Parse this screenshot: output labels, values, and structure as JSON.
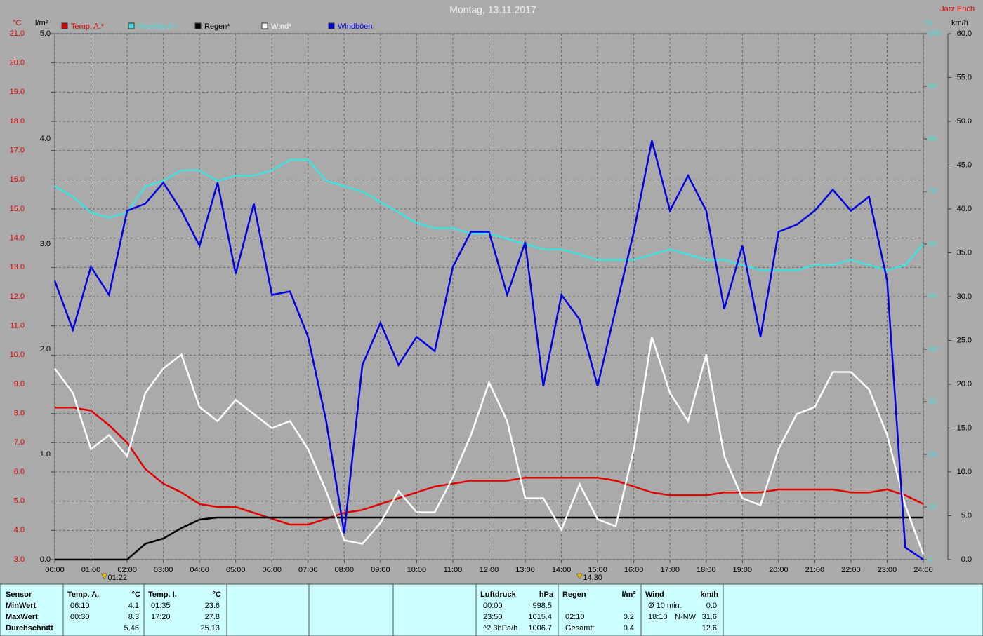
{
  "chart_data": {
    "type": "line",
    "title": "Montag, 13.11.2017",
    "author": "Jarz Erich",
    "ylabel": "°C",
    "y2label": "l/m²",
    "y3label": "%",
    "y4label": "km/h",
    "xlim": [
      0,
      24
    ],
    "xticks": [
      {
        "value": 0,
        "label": "00:00"
      },
      {
        "value": 1,
        "label": "01:00"
      },
      {
        "value": 2,
        "label": "02:00"
      },
      {
        "value": 3,
        "label": "03:00"
      },
      {
        "value": 4,
        "label": "04:00"
      },
      {
        "value": 5,
        "label": "05:00"
      },
      {
        "value": 6,
        "label": "06:00"
      },
      {
        "value": 7,
        "label": "07:00"
      },
      {
        "value": 8,
        "label": "08:00"
      },
      {
        "value": 9,
        "label": "09:00"
      },
      {
        "value": 10,
        "label": "10:00"
      },
      {
        "value": 11,
        "label": "11:00"
      },
      {
        "value": 12,
        "label": "12:00"
      },
      {
        "value": 13,
        "label": "13:00"
      },
      {
        "value": 14,
        "label": "14:00"
      },
      {
        "value": 15,
        "label": "15:00"
      },
      {
        "value": 16,
        "label": "16:00"
      },
      {
        "value": 17,
        "label": "17:00"
      },
      {
        "value": 18,
        "label": "18:00"
      },
      {
        "value": 19,
        "label": "19:00"
      },
      {
        "value": 20,
        "label": "20:00"
      },
      {
        "value": 21,
        "label": "21:00"
      },
      {
        "value": 22,
        "label": "22:00"
      },
      {
        "value": 23,
        "label": "23:00"
      },
      {
        "value": 24,
        "label": "24:00"
      }
    ],
    "ylim": [
      3,
      21
    ],
    "yticks": [
      {
        "value": 3,
        "label": "3.0"
      },
      {
        "value": 4,
        "label": "4.0"
      },
      {
        "value": 5,
        "label": "5.0"
      },
      {
        "value": 6,
        "label": "6.0"
      },
      {
        "value": 7,
        "label": "7.0"
      },
      {
        "value": 8,
        "label": "8.0"
      },
      {
        "value": 9,
        "label": "9.0"
      },
      {
        "value": 10,
        "label": "10.0"
      },
      {
        "value": 11,
        "label": "11.0"
      },
      {
        "value": 12,
        "label": "12.0"
      },
      {
        "value": 13,
        "label": "13.0"
      },
      {
        "value": 14,
        "label": "14.0"
      },
      {
        "value": 15,
        "label": "15.0"
      },
      {
        "value": 16,
        "label": "16.0"
      },
      {
        "value": 17,
        "label": "17.0"
      },
      {
        "value": 18,
        "label": "18.0"
      },
      {
        "value": 19,
        "label": "19.0"
      },
      {
        "value": 20,
        "label": "20.0"
      },
      {
        "value": 21,
        "label": "21.0"
      }
    ],
    "y2lim": [
      0,
      5
    ],
    "y2ticks": [
      {
        "value": 0,
        "label": "0.0"
      },
      {
        "value": 1,
        "label": "1.0"
      },
      {
        "value": 2,
        "label": "2.0"
      },
      {
        "value": 3,
        "label": "3.0"
      },
      {
        "value": 4,
        "label": "4.0"
      },
      {
        "value": 5,
        "label": "5.0"
      }
    ],
    "y3lim": [
      0,
      100
    ],
    "y3ticks": [
      0,
      10,
      20,
      30,
      40,
      50,
      60,
      70,
      80,
      90,
      100
    ],
    "y4lim": [
      0,
      60
    ],
    "y4ticks": [
      {
        "value": 0,
        "label": "0.0"
      },
      {
        "value": 5,
        "label": "5.0"
      },
      {
        "value": 10,
        "label": "10.0"
      },
      {
        "value": 15,
        "label": "15.0"
      },
      {
        "value": 20,
        "label": "20.0"
      },
      {
        "value": 25,
        "label": "25.0"
      },
      {
        "value": 30,
        "label": "30.0"
      },
      {
        "value": 35,
        "label": "35.0"
      },
      {
        "value": 40,
        "label": "40.0"
      },
      {
        "value": 45,
        "label": "45.0"
      },
      {
        "value": 50,
        "label": "50.0"
      },
      {
        "value": 55,
        "label": "55.0"
      },
      {
        "value": 60,
        "label": "60.0"
      }
    ],
    "grid": true,
    "x": [
      0,
      0.5,
      1,
      1.5,
      2,
      2.5,
      3,
      3.5,
      4,
      4.5,
      5,
      5.5,
      6,
      6.5,
      7,
      7.5,
      8,
      8.5,
      9,
      9.5,
      10,
      10.5,
      11,
      11.5,
      12,
      12.5,
      13,
      13.5,
      14,
      14.5,
      15,
      15.5,
      16,
      16.5,
      17,
      17.5,
      18,
      18.5,
      19,
      19.5,
      20,
      20.5,
      21,
      21.5,
      22,
      22.5,
      23,
      23.5,
      24
    ],
    "series": [
      {
        "name": "Temp. A.*",
        "color": "#e00000",
        "axis": "y",
        "values": [
          8.2,
          8.2,
          8.1,
          7.6,
          7.0,
          6.1,
          5.6,
          5.3,
          4.9,
          4.8,
          4.8,
          4.6,
          4.4,
          4.2,
          4.2,
          4.4,
          4.6,
          4.7,
          4.9,
          5.1,
          5.3,
          5.5,
          5.6,
          5.7,
          5.7,
          5.7,
          5.8,
          5.8,
          5.8,
          5.8,
          5.8,
          5.7,
          5.5,
          5.3,
          5.2,
          5.2,
          5.2,
          5.3,
          5.3,
          5.3,
          5.4,
          5.4,
          5.4,
          5.4,
          5.3,
          5.3,
          5.4,
          5.2,
          4.9
        ]
      },
      {
        "name": "Feuchte A.*",
        "color": "#40e0e0",
        "axis": "y3",
        "values": [
          71,
          69,
          66,
          65,
          66,
          71,
          72,
          74,
          74,
          72,
          73,
          73,
          74,
          76,
          76,
          72,
          71,
          70,
          68,
          66,
          64,
          63,
          63,
          62,
          62,
          61,
          60,
          59,
          59,
          58,
          57,
          57,
          57,
          58,
          59,
          58,
          57,
          57,
          56,
          55,
          55,
          55,
          56,
          56,
          57,
          56,
          55,
          56,
          60
        ]
      },
      {
        "name": "Regen*",
        "color": "#000000",
        "axis": "y2",
        "values": [
          0,
          0,
          0,
          0,
          0,
          0.15,
          0.2,
          0.3,
          0.38,
          0.4,
          0.4,
          0.4,
          0.4,
          0.4,
          0.4,
          0.4,
          0.4,
          0.4,
          0.4,
          0.4,
          0.4,
          0.4,
          0.4,
          0.4,
          0.4,
          0.4,
          0.4,
          0.4,
          0.4,
          0.4,
          0.4,
          0.4,
          0.4,
          0.4,
          0.4,
          0.4,
          0.4,
          0.4,
          0.4,
          0.4,
          0.4,
          0.4,
          0.4,
          0.4,
          0.4,
          0.4,
          0.4,
          0.4,
          0.4
        ]
      },
      {
        "name": "Wind*",
        "color": "#ffffff",
        "axis": "y4",
        "values": [
          21.8,
          19,
          12.6,
          14.2,
          11.8,
          19,
          21.8,
          23.4,
          17.4,
          15.8,
          18.2,
          16.6,
          15,
          15.8,
          12.6,
          7.8,
          2.2,
          1.8,
          4.2,
          7.8,
          5.4,
          5.4,
          9.4,
          14.2,
          20.2,
          15.8,
          7,
          7,
          3.4,
          8.6,
          4.6,
          3.8,
          12.6,
          25.4,
          19,
          15.8,
          23.4,
          11.8,
          7,
          6.2,
          12.6,
          16.6,
          17.4,
          21.4,
          21.4,
          19.4,
          14.2,
          6.2,
          0.6
        ]
      },
      {
        "name": "Windböen",
        "color": "#0000e0",
        "axis": "y4",
        "values": [
          31.8,
          26.2,
          33.4,
          30.2,
          39.8,
          40.6,
          43,
          39.8,
          35.8,
          43,
          32.6,
          40.6,
          30.2,
          30.6,
          25.4,
          15.8,
          3,
          22.2,
          27,
          22.2,
          25.4,
          23.8,
          33.4,
          37.4,
          37.4,
          30.2,
          36.2,
          19.8,
          30.2,
          27.4,
          19.8,
          28.6,
          37.4,
          47.8,
          39.8,
          43.8,
          39.8,
          28.6,
          35.8,
          25.4,
          37.4,
          38.2,
          39.8,
          42.2,
          39.8,
          41.4,
          31.8,
          1.4,
          0
        ]
      }
    ],
    "annotations": [
      {
        "text": "01:22",
        "x": 1.367
      },
      {
        "text": "14:30",
        "x": 14.5
      }
    ]
  },
  "table": {
    "row_labels": [
      "Sensor",
      "MinWert",
      "MaxWert",
      "Durchschnitt"
    ],
    "blocks": [
      {
        "title": "Temp. A.",
        "unit": "°C",
        "rows": [
          [
            "06:10",
            "4.1"
          ],
          [
            "00:30",
            "8.3"
          ],
          [
            "5.46"
          ]
        ]
      },
      {
        "title": "Temp. I.",
        "unit": "°C",
        "rows": [
          [
            "01:35",
            "23.6"
          ],
          [
            "17:20",
            "27.8"
          ],
          [
            "25.13"
          ]
        ]
      },
      {
        "title": "Luftdruck",
        "unit": "hPa",
        "rows": [
          [
            "00:00",
            "998.5"
          ],
          [
            "23:50",
            "1015.4"
          ],
          [
            "^2.3hPa/h",
            "1006.7"
          ]
        ]
      },
      {
        "title": "Regen",
        "unit": "l/m²",
        "rows": [
          null,
          [
            "02:10",
            "0.2"
          ],
          [
            "Gesamt:",
            "0.4"
          ]
        ]
      },
      {
        "title": "Wind",
        "unit": "km/h",
        "rows": [
          [
            "Ø 10 min.",
            "0.0"
          ],
          [
            "18:10",
            "N-NW",
            "31.6"
          ],
          [
            "12.6"
          ]
        ]
      }
    ]
  }
}
